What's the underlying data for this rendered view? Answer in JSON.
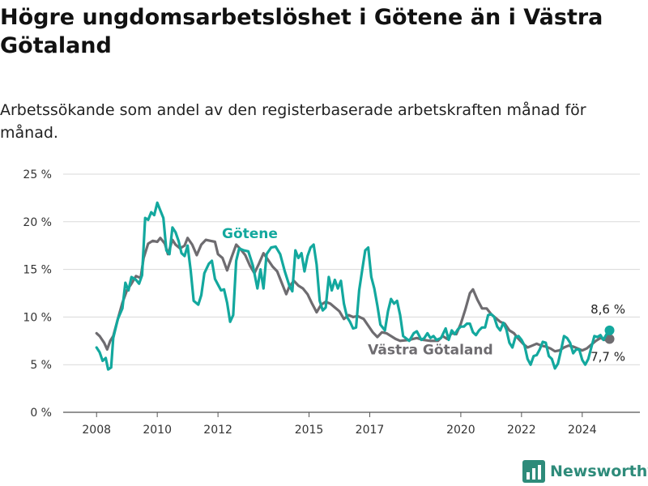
{
  "title": "Högre ungdomsarbetslöshet i Götene än i Västra Götaland",
  "subtitle": "Arbetssökande som andel av den registerbaserade arbetskraften månad för månad.",
  "brand": {
    "name": "Newsworthy",
    "color": "#2e8b7a",
    "icon": "bar-chart-logo-icon"
  },
  "chart_data": {
    "type": "line",
    "y_ticks": [
      "0 %",
      "5 %",
      "10 %",
      "15 %",
      "20 %",
      "25 %"
    ],
    "y_tick_values": [
      0,
      5,
      10,
      15,
      20,
      25
    ],
    "x_ticks": [
      "2008",
      "2010",
      "2012",
      "2015",
      "2017",
      "2020",
      "2022",
      "2024"
    ],
    "x_tick_values": [
      2008,
      2010,
      2012,
      2015,
      2017,
      2020,
      2022,
      2024
    ],
    "ylim": [
      0,
      25
    ],
    "xlim": [
      2006.9,
      2025.9
    ],
    "grid": "horizontal",
    "series": [
      {
        "name": "Västra Götaland",
        "color": "#6e6c70",
        "end_label": "7,7 %",
        "points": [
          [
            2008.0,
            8.3
          ],
          [
            2008.1,
            8.0
          ],
          [
            2008.25,
            7.3
          ],
          [
            2008.35,
            6.6
          ],
          [
            2008.45,
            7.5
          ],
          [
            2008.55,
            8.0
          ],
          [
            2008.7,
            9.8
          ],
          [
            2008.85,
            11.5
          ],
          [
            2009.0,
            12.8
          ],
          [
            2009.15,
            13.5
          ],
          [
            2009.3,
            14.3
          ],
          [
            2009.45,
            14.1
          ],
          [
            2009.55,
            16.2
          ],
          [
            2009.7,
            17.7
          ],
          [
            2009.85,
            18.0
          ],
          [
            2010.0,
            17.9
          ],
          [
            2010.1,
            18.3
          ],
          [
            2010.25,
            17.7
          ],
          [
            2010.35,
            16.6
          ],
          [
            2010.5,
            18.1
          ],
          [
            2010.6,
            17.6
          ],
          [
            2010.75,
            17.2
          ],
          [
            2010.9,
            17.5
          ],
          [
            2011.0,
            18.3
          ],
          [
            2011.15,
            17.6
          ],
          [
            2011.3,
            16.5
          ],
          [
            2011.45,
            17.6
          ],
          [
            2011.6,
            18.1
          ],
          [
            2011.75,
            18.0
          ],
          [
            2011.9,
            17.9
          ],
          [
            2012.0,
            16.6
          ],
          [
            2012.15,
            16.2
          ],
          [
            2012.3,
            14.9
          ],
          [
            2012.45,
            16.3
          ],
          [
            2012.6,
            17.6
          ],
          [
            2012.75,
            17.1
          ],
          [
            2012.9,
            16.5
          ],
          [
            2013.05,
            15.4
          ],
          [
            2013.2,
            14.6
          ],
          [
            2013.35,
            15.6
          ],
          [
            2013.5,
            16.7
          ],
          [
            2013.65,
            16.0
          ],
          [
            2013.8,
            15.3
          ],
          [
            2013.95,
            14.8
          ],
          [
            2014.1,
            13.6
          ],
          [
            2014.25,
            12.4
          ],
          [
            2014.35,
            13.2
          ],
          [
            2014.5,
            13.8
          ],
          [
            2014.65,
            13.3
          ],
          [
            2014.8,
            13.0
          ],
          [
            2014.95,
            12.4
          ],
          [
            2015.1,
            11.4
          ],
          [
            2015.25,
            10.5
          ],
          [
            2015.4,
            11.3
          ],
          [
            2015.55,
            11.6
          ],
          [
            2015.7,
            11.4
          ],
          [
            2015.85,
            11.0
          ],
          [
            2016.0,
            10.6
          ],
          [
            2016.15,
            9.8
          ],
          [
            2016.3,
            10.2
          ],
          [
            2016.45,
            10.0
          ],
          [
            2016.6,
            10.1
          ],
          [
            2016.8,
            9.8
          ],
          [
            2016.95,
            9.1
          ],
          [
            2017.1,
            8.4
          ],
          [
            2017.25,
            7.9
          ],
          [
            2017.4,
            8.4
          ],
          [
            2017.55,
            8.3
          ],
          [
            2017.7,
            8.0
          ],
          [
            2017.85,
            7.7
          ],
          [
            2018.0,
            7.5
          ],
          [
            2018.3,
            7.6
          ],
          [
            2018.55,
            7.8
          ],
          [
            2018.75,
            7.6
          ],
          [
            2019.0,
            7.5
          ],
          [
            2019.25,
            7.5
          ],
          [
            2019.4,
            8.0
          ],
          [
            2019.55,
            7.7
          ],
          [
            2019.7,
            8.3
          ],
          [
            2019.85,
            8.2
          ],
          [
            2020.0,
            9.3
          ],
          [
            2020.15,
            10.8
          ],
          [
            2020.3,
            12.5
          ],
          [
            2020.4,
            12.9
          ],
          [
            2020.55,
            11.8
          ],
          [
            2020.7,
            10.9
          ],
          [
            2020.85,
            10.9
          ],
          [
            2021.0,
            10.3
          ],
          [
            2021.15,
            9.9
          ],
          [
            2021.3,
            9.5
          ],
          [
            2021.45,
            9.3
          ],
          [
            2021.6,
            8.6
          ],
          [
            2021.75,
            8.3
          ],
          [
            2021.9,
            7.7
          ],
          [
            2022.05,
            7.2
          ],
          [
            2022.2,
            6.8
          ],
          [
            2022.35,
            7.0
          ],
          [
            2022.5,
            7.2
          ],
          [
            2022.65,
            7.0
          ],
          [
            2022.8,
            6.9
          ],
          [
            2022.95,
            6.7
          ],
          [
            2023.1,
            6.4
          ],
          [
            2023.25,
            6.5
          ],
          [
            2023.4,
            6.8
          ],
          [
            2023.55,
            7.0
          ],
          [
            2023.7,
            6.9
          ],
          [
            2023.85,
            6.7
          ],
          [
            2024.0,
            6.5
          ],
          [
            2024.15,
            6.7
          ],
          [
            2024.3,
            7.1
          ],
          [
            2024.45,
            7.5
          ],
          [
            2024.6,
            7.8
          ],
          [
            2024.75,
            7.6
          ],
          [
            2024.9,
            7.7
          ]
        ]
      },
      {
        "name": "Götene",
        "color": "#13a89e",
        "end_label": "8,6 %",
        "points": [
          [
            2008.0,
            6.8
          ],
          [
            2008.1,
            6.3
          ],
          [
            2008.2,
            5.4
          ],
          [
            2008.3,
            5.7
          ],
          [
            2008.38,
            4.5
          ],
          [
            2008.48,
            4.7
          ],
          [
            2008.55,
            7.8
          ],
          [
            2008.7,
            9.8
          ],
          [
            2008.85,
            10.9
          ],
          [
            2008.95,
            13.6
          ],
          [
            2009.05,
            12.8
          ],
          [
            2009.15,
            14.2
          ],
          [
            2009.3,
            13.9
          ],
          [
            2009.4,
            13.5
          ],
          [
            2009.5,
            14.4
          ],
          [
            2009.6,
            20.4
          ],
          [
            2009.7,
            20.2
          ],
          [
            2009.8,
            21.0
          ],
          [
            2009.9,
            20.7
          ],
          [
            2010.0,
            22.0
          ],
          [
            2010.1,
            21.2
          ],
          [
            2010.2,
            20.4
          ],
          [
            2010.3,
            17.0
          ],
          [
            2010.4,
            16.6
          ],
          [
            2010.5,
            19.4
          ],
          [
            2010.6,
            18.9
          ],
          [
            2010.7,
            18.0
          ],
          [
            2010.8,
            16.7
          ],
          [
            2010.9,
            16.4
          ],
          [
            2011.0,
            17.5
          ],
          [
            2011.1,
            14.9
          ],
          [
            2011.2,
            11.7
          ],
          [
            2011.35,
            11.3
          ],
          [
            2011.45,
            12.3
          ],
          [
            2011.55,
            14.6
          ],
          [
            2011.7,
            15.6
          ],
          [
            2011.8,
            15.9
          ],
          [
            2011.9,
            14.0
          ],
          [
            2012.0,
            13.4
          ],
          [
            2012.1,
            12.8
          ],
          [
            2012.2,
            12.9
          ],
          [
            2012.3,
            11.5
          ],
          [
            2012.4,
            9.5
          ],
          [
            2012.5,
            10.2
          ],
          [
            2012.6,
            15.9
          ],
          [
            2012.7,
            17.2
          ],
          [
            2012.85,
            17.0
          ],
          [
            2013.0,
            16.9
          ],
          [
            2013.15,
            15.4
          ],
          [
            2013.3,
            13.0
          ],
          [
            2013.4,
            15.0
          ],
          [
            2013.5,
            13.0
          ],
          [
            2013.6,
            16.6
          ],
          [
            2013.75,
            17.3
          ],
          [
            2013.9,
            17.4
          ],
          [
            2014.05,
            16.6
          ],
          [
            2014.2,
            14.8
          ],
          [
            2014.35,
            13.3
          ],
          [
            2014.45,
            12.7
          ],
          [
            2014.55,
            17.0
          ],
          [
            2014.65,
            16.2
          ],
          [
            2014.75,
            16.7
          ],
          [
            2014.85,
            14.8
          ],
          [
            2014.95,
            16.4
          ],
          [
            2015.05,
            17.3
          ],
          [
            2015.15,
            17.6
          ],
          [
            2015.25,
            15.5
          ],
          [
            2015.35,
            11.7
          ],
          [
            2015.45,
            10.7
          ],
          [
            2015.55,
            11.0
          ],
          [
            2015.65,
            14.2
          ],
          [
            2015.75,
            12.8
          ],
          [
            2015.85,
            13.9
          ],
          [
            2015.95,
            13.0
          ],
          [
            2016.05,
            13.8
          ],
          [
            2016.15,
            11.4
          ],
          [
            2016.25,
            10.0
          ],
          [
            2016.35,
            9.5
          ],
          [
            2016.45,
            8.8
          ],
          [
            2016.55,
            8.9
          ],
          [
            2016.65,
            12.8
          ],
          [
            2016.75,
            14.9
          ],
          [
            2016.85,
            17.0
          ],
          [
            2016.95,
            17.3
          ],
          [
            2017.05,
            14.2
          ],
          [
            2017.15,
            13.0
          ],
          [
            2017.25,
            11.2
          ],
          [
            2017.35,
            9.2
          ],
          [
            2017.5,
            8.6
          ],
          [
            2017.6,
            10.6
          ],
          [
            2017.7,
            11.9
          ],
          [
            2017.8,
            11.4
          ],
          [
            2017.9,
            11.7
          ],
          [
            2018.0,
            10.2
          ],
          [
            2018.1,
            8.0
          ],
          [
            2018.3,
            7.5
          ],
          [
            2018.45,
            8.3
          ],
          [
            2018.55,
            8.5
          ],
          [
            2018.7,
            7.6
          ],
          [
            2018.8,
            7.8
          ],
          [
            2018.9,
            8.3
          ],
          [
            2019.0,
            7.8
          ],
          [
            2019.1,
            8.0
          ],
          [
            2019.2,
            7.6
          ],
          [
            2019.35,
            7.8
          ],
          [
            2019.5,
            8.8
          ],
          [
            2019.6,
            7.6
          ],
          [
            2019.7,
            8.6
          ],
          [
            2019.8,
            8.2
          ],
          [
            2019.9,
            8.7
          ],
          [
            2020.0,
            9.0
          ],
          [
            2020.1,
            9.0
          ],
          [
            2020.2,
            9.3
          ],
          [
            2020.3,
            9.3
          ],
          [
            2020.4,
            8.4
          ],
          [
            2020.5,
            8.1
          ],
          [
            2020.6,
            8.6
          ],
          [
            2020.7,
            8.9
          ],
          [
            2020.8,
            8.9
          ],
          [
            2020.9,
            10.2
          ],
          [
            2021.0,
            10.3
          ],
          [
            2021.1,
            10.0
          ],
          [
            2021.2,
            9.0
          ],
          [
            2021.3,
            8.6
          ],
          [
            2021.4,
            9.4
          ],
          [
            2021.5,
            8.7
          ],
          [
            2021.6,
            7.3
          ],
          [
            2021.7,
            6.8
          ],
          [
            2021.8,
            7.9
          ],
          [
            2021.9,
            8.0
          ],
          [
            2022.0,
            7.6
          ],
          [
            2022.1,
            7.0
          ],
          [
            2022.2,
            5.6
          ],
          [
            2022.3,
            5.0
          ],
          [
            2022.4,
            5.9
          ],
          [
            2022.5,
            6.0
          ],
          [
            2022.6,
            6.6
          ],
          [
            2022.7,
            7.4
          ],
          [
            2022.8,
            7.3
          ],
          [
            2022.9,
            5.9
          ],
          [
            2023.0,
            5.6
          ],
          [
            2023.1,
            4.6
          ],
          [
            2023.2,
            5.1
          ],
          [
            2023.3,
            6.5
          ],
          [
            2023.4,
            8.0
          ],
          [
            2023.5,
            7.8
          ],
          [
            2023.6,
            7.3
          ],
          [
            2023.7,
            6.2
          ],
          [
            2023.8,
            6.6
          ],
          [
            2023.9,
            6.6
          ],
          [
            2024.0,
            5.5
          ],
          [
            2024.1,
            5.0
          ],
          [
            2024.2,
            5.6
          ],
          [
            2024.3,
            6.8
          ],
          [
            2024.4,
            8.0
          ],
          [
            2024.5,
            7.9
          ],
          [
            2024.6,
            8.1
          ],
          [
            2024.7,
            7.6
          ],
          [
            2024.8,
            8.2
          ],
          [
            2024.9,
            8.6
          ]
        ]
      }
    ]
  }
}
